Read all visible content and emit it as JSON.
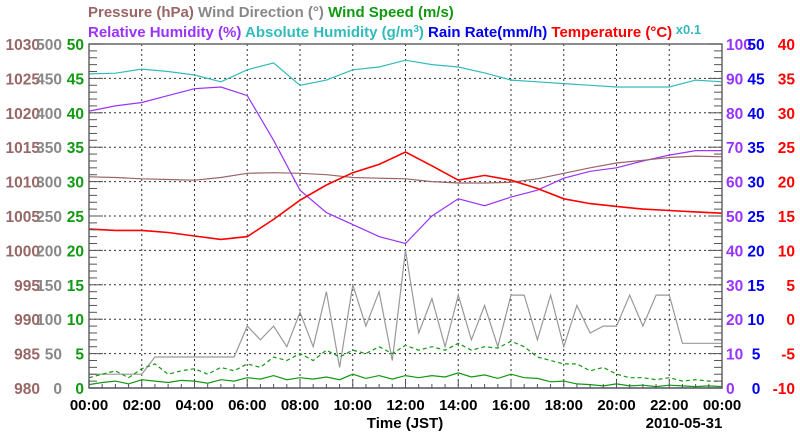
{
  "chart_data": {
    "type": "line",
    "legend": {
      "row1": [
        {
          "text": "Pressure (hPa)",
          "color": "#996666"
        },
        {
          "text": "Wind Direction (°)",
          "color": "#888888"
        },
        {
          "text": "Wind Speed (m/s)",
          "color": "#119911"
        }
      ],
      "row2": [
        {
          "text": "Relative Humidity (%)",
          "color": "#9933ff"
        },
        {
          "text": "Absolute Humidity (g/m",
          "sup": "3",
          "close": ")",
          "color": "#33bbbb"
        },
        {
          "text": "Rain Rate(mm/h)",
          "color": "#0000ee"
        },
        {
          "text": "Temperature (°C)",
          "color": "#ff0000"
        }
      ],
      "scale_note": "x0.1"
    },
    "axes": {
      "pressure": {
        "range": [
          980,
          1030
        ],
        "ticks": [
          "980",
          "985",
          "990",
          "995",
          "1000",
          "1005",
          "1010",
          "1015",
          "1020",
          "1025",
          "1030"
        ],
        "color": "#996666"
      },
      "wind_direction": {
        "range": [
          0,
          500
        ],
        "ticks": [
          "0",
          "50",
          "100",
          "150",
          "200",
          "250",
          "300",
          "350",
          "400",
          "450",
          "500"
        ],
        "color": "#888888"
      },
      "wind_speed": {
        "range": [
          0,
          50
        ],
        "ticks": [
          "0",
          "5",
          "10",
          "15",
          "20",
          "25",
          "30",
          "35",
          "40",
          "45",
          "50"
        ],
        "color": "#119911"
      },
      "humidity": {
        "range": [
          0,
          100
        ],
        "ticks": [
          "0",
          "10",
          "20",
          "30",
          "40",
          "50",
          "60",
          "70",
          "80",
          "90",
          "100"
        ],
        "color": "#9933ff"
      },
      "rain": {
        "range": [
          0,
          50
        ],
        "ticks": [
          "0",
          "5",
          "10",
          "15",
          "20",
          "25",
          "30",
          "35",
          "40",
          "45",
          "50"
        ],
        "color": "#0000ee"
      },
      "temperature": {
        "range": [
          -10,
          40
        ],
        "ticks": [
          "-10",
          "-5",
          "0",
          "5",
          "10",
          "15",
          "20",
          "25",
          "30",
          "35",
          "40"
        ],
        "color": "#ff0000"
      }
    },
    "x_ticks": [
      "00:00",
      "02:00",
      "04:00",
      "06:00",
      "08:00",
      "10:00",
      "12:00",
      "14:00",
      "16:00",
      "18:00",
      "20:00",
      "22:00",
      "00:00"
    ],
    "xlabel": "Time (JST)",
    "date": "2010-05-31",
    "x_range_hours": [
      0,
      24
    ],
    "grid": true,
    "series": [
      {
        "name": "Absolute Humidity",
        "axis": "humidity",
        "color": "#33bbbb",
        "step_hours": 1,
        "values": [
          91.3,
          91.5,
          92.7,
          92,
          91,
          89,
          92.5,
          94.5,
          88,
          89.5,
          92.5,
          93.3,
          95.3,
          94,
          93.3,
          91.6,
          89.5,
          89,
          88.5,
          88,
          87.5,
          87.5,
          87.5,
          89.5,
          89
        ]
      },
      {
        "name": "Relative Humidity",
        "axis": "humidity",
        "color": "#9933ff",
        "step_hours": 1,
        "values": [
          80.5,
          82,
          83,
          85,
          87,
          87.5,
          85,
          72,
          57.5,
          51,
          47.5,
          44,
          42,
          50,
          55,
          53,
          55.5,
          57.5,
          61,
          63,
          64,
          66,
          67.7,
          69,
          69
        ]
      },
      {
        "name": "Pressure",
        "axis": "pressure",
        "color": "#996666",
        "step_hours": 1,
        "values": [
          1010.7,
          1010.6,
          1010.4,
          1010.3,
          1010.2,
          1010.6,
          1011.2,
          1011.3,
          1011.2,
          1011,
          1010.6,
          1010.5,
          1010.4,
          1010.0,
          1009.8,
          1009.8,
          1009.9,
          1010.4,
          1011.2,
          1012,
          1012.7,
          1013.1,
          1013.5,
          1013.7,
          1013.6
        ]
      },
      {
        "name": "Temperature",
        "axis": "temperature",
        "color": "#ff0000",
        "step_hours": 1,
        "values": [
          13.1,
          12.9,
          12.9,
          12.6,
          12.1,
          11.6,
          12.0,
          14.5,
          17.3,
          19.5,
          21.3,
          22.5,
          24.3,
          22.3,
          20.2,
          20.9,
          20.2,
          19.0,
          17.5,
          16.8,
          16.4,
          16.0,
          15.8,
          15.6,
          15.4
        ]
      },
      {
        "name": "Wind Direction",
        "axis": "wind_direction",
        "color": "#999999",
        "step_hours": 0.5,
        "values": [
          20,
          20,
          20,
          20,
          20,
          45,
          45,
          45,
          45,
          45,
          45,
          45,
          90,
          70,
          90,
          60,
          110,
          60,
          140,
          30,
          150,
          90,
          140,
          40,
          200,
          80,
          130,
          60,
          135,
          70,
          120,
          60,
          135,
          135,
          70,
          135,
          60,
          120,
          80,
          90,
          90,
          135,
          90,
          135,
          135,
          65,
          65,
          65,
          65
        ]
      },
      {
        "name": "Wind Speed",
        "axis": "wind_speed",
        "color": "#119911",
        "step_hours": 0.5,
        "values": [
          0.5,
          0.8,
          1,
          0.6,
          1.2,
          1,
          0.8,
          1.1,
          1,
          0.7,
          1.2,
          1,
          1.5,
          1.3,
          1.8,
          1.2,
          1.5,
          1.3,
          1.6,
          1.2,
          2,
          1.4,
          1.8,
          1.3,
          1.8,
          1.5,
          1.8,
          1.6,
          2.2,
          1.6,
          1.9,
          1.4,
          2,
          1.5,
          1.4,
          0.9,
          1,
          0.6,
          0.5,
          0.3,
          0.6,
          0.3,
          0.4,
          0.2,
          0.4,
          0.3,
          0.2,
          0.3,
          0.2
        ]
      },
      {
        "name": "Wind Gust",
        "axis": "wind_speed",
        "color": "#119911",
        "dashed": true,
        "step_hours": 0.5,
        "values": [
          1.5,
          2,
          2.5,
          1.5,
          2.8,
          3.5,
          2,
          2.5,
          2.8,
          2,
          3,
          2.5,
          3.5,
          3,
          4.5,
          4,
          5,
          4,
          5.5,
          4.5,
          5.5,
          5,
          6,
          5,
          6.2,
          5.5,
          6,
          5.5,
          6.5,
          5.5,
          6,
          5.8,
          6.8,
          6,
          4.5,
          4,
          3.5,
          3.5,
          2.5,
          3,
          2,
          1.5,
          1.5,
          1.2,
          1.5,
          1,
          1.2,
          1,
          1
        ]
      },
      {
        "name": "Rain Rate",
        "axis": "rain",
        "color": "#0000ee",
        "step_hours": 24,
        "values": [
          0,
          0
        ]
      }
    ]
  }
}
